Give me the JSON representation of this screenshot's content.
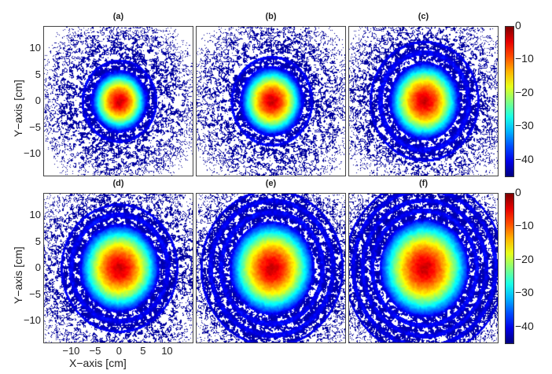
{
  "chart_data": {
    "type": "heatmap",
    "xlabel": "X−axis [cm]",
    "ylabel": "Y−axis [cm]",
    "xlim": [
      -15.8,
      15.5
    ],
    "ylim": [
      -14.3,
      14.2
    ],
    "x_ticks": [
      -10,
      -5,
      0,
      5,
      10
    ],
    "x_tick_labels": [
      "−10",
      "−5",
      "0",
      "5",
      "10"
    ],
    "y_ticks": [
      10,
      5,
      0,
      -5,
      -10
    ],
    "y_tick_labels": [
      "10",
      "5",
      "0",
      "−5",
      "−10"
    ],
    "colorbar": {
      "range": [
        -45,
        0
      ],
      "ticks": [
        0,
        -10,
        -20,
        -30,
        -40
      ],
      "tick_labels": [
        "0",
        "−10",
        "−20",
        "−30",
        "−40"
      ],
      "colormap": "jet"
    },
    "panels": [
      {
        "title": "(a)",
        "core_radius_cm": 5.5,
        "rings": 1,
        "ring_spacing_cm": 2.5
      },
      {
        "title": "(b)",
        "core_radius_cm": 6.2,
        "rings": 1,
        "ring_spacing_cm": 2.5
      },
      {
        "title": "(c)",
        "core_radius_cm": 7.0,
        "rings": 2,
        "ring_spacing_cm": 2.3
      },
      {
        "title": "(d)",
        "core_radius_cm": 8.0,
        "rings": 2,
        "ring_spacing_cm": 2.2
      },
      {
        "title": "(e)",
        "core_radius_cm": 8.5,
        "rings": 3,
        "ring_spacing_cm": 2.2
      },
      {
        "title": "(f)",
        "core_radius_cm": 9.0,
        "rings": 4,
        "ring_spacing_cm": 2.0
      }
    ]
  }
}
